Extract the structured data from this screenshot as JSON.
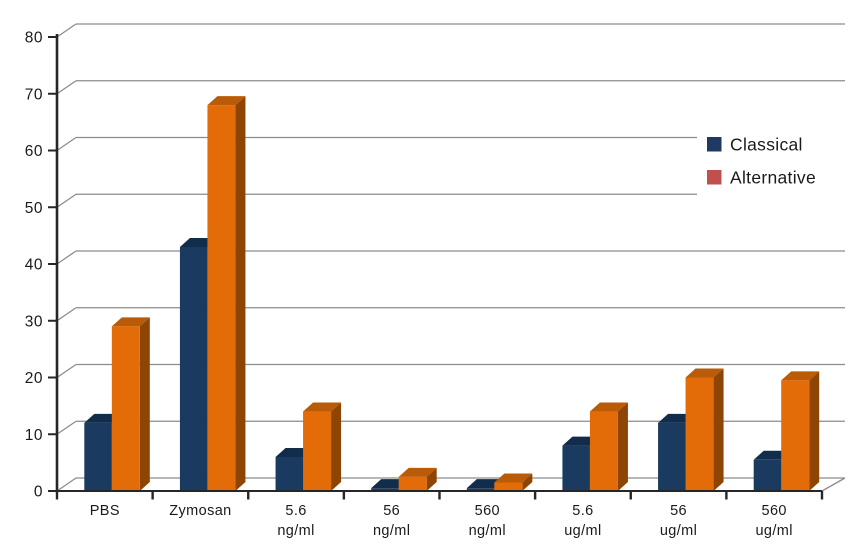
{
  "chart_data": {
    "type": "bar",
    "style": "3d-clustered",
    "categories": [
      "PBS",
      "Zymosan",
      "5.6\nng/ml",
      "56\nng/ml",
      "560\nng/ml",
      "5.6\nug/ml",
      "56\nug/ml",
      "560\nug/ml"
    ],
    "series": [
      {
        "name": "Classical",
        "values": [
          12,
          43,
          6,
          0.5,
          0.5,
          8,
          12,
          5.5
        ],
        "colors": {
          "front": "#1B3A5F",
          "top": "#122C4B",
          "side": "#0D2038"
        },
        "legend_color": "#1F3864"
      },
      {
        "name": "Alternative",
        "values": [
          29,
          68,
          14,
          2.5,
          1.5,
          14,
          20,
          19.5
        ],
        "colors": {
          "front": "#E36C09",
          "top": "#BA5B07",
          "side": "#8E4504"
        },
        "legend_color": "#C0504D"
      }
    ],
    "ylim": [
      0,
      80
    ],
    "ytick_step": 10,
    "ytick_labels": [
      "0",
      "10",
      "20",
      "30",
      "40",
      "50",
      "60",
      "70",
      "80"
    ],
    "grid": true,
    "legend_position": "right",
    "axis_color": "#262626",
    "grid_color": "#8C8C8C",
    "label_color": "#1A1A1A",
    "background": "#FFFFFF"
  }
}
